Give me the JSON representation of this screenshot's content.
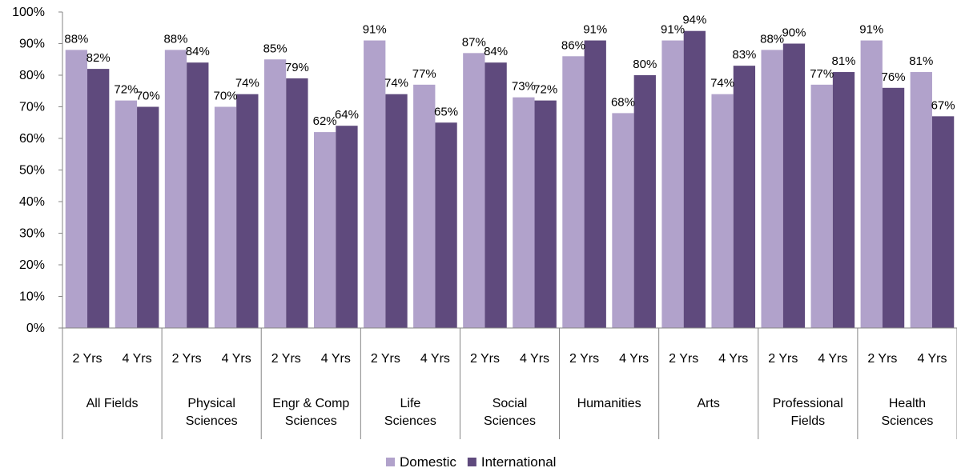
{
  "chart_data": {
    "type": "bar",
    "group_labels": [
      [
        "All Fields"
      ],
      [
        "Physical",
        "Sciences"
      ],
      [
        "Engr & Comp",
        "Sciences"
      ],
      [
        "Life",
        "Sciences"
      ],
      [
        "Social",
        "Sciences"
      ],
      [
        "Humanities"
      ],
      [
        "Arts"
      ],
      [
        "Professional",
        "Fields"
      ],
      [
        "Health",
        "Sciences"
      ]
    ],
    "sub_categories": [
      "2 Yrs",
      "4 Yrs"
    ],
    "series": [
      {
        "name": "Domestic",
        "color": "#b1a2cb",
        "values": [
          [
            88,
            72
          ],
          [
            88,
            70
          ],
          [
            85,
            62
          ],
          [
            91,
            77
          ],
          [
            87,
            73
          ],
          [
            86,
            68
          ],
          [
            91,
            74
          ],
          [
            88,
            77
          ],
          [
            91,
            81
          ]
        ]
      },
      {
        "name": "International",
        "color": "#5f4a7d",
        "values": [
          [
            82,
            70
          ],
          [
            84,
            74
          ],
          [
            79,
            64
          ],
          [
            74,
            65
          ],
          [
            84,
            72
          ],
          [
            91,
            80
          ],
          [
            94,
            83
          ],
          [
            90,
            81
          ],
          [
            76,
            67
          ]
        ]
      }
    ],
    "ylim": [
      0,
      100
    ],
    "y_ticks": [
      "0%",
      "10%",
      "20%",
      "30%",
      "40%",
      "50%",
      "60%",
      "70%",
      "80%",
      "90%",
      "100%"
    ],
    "value_suffix": "%",
    "legend_position": "bottom",
    "grid": false
  }
}
